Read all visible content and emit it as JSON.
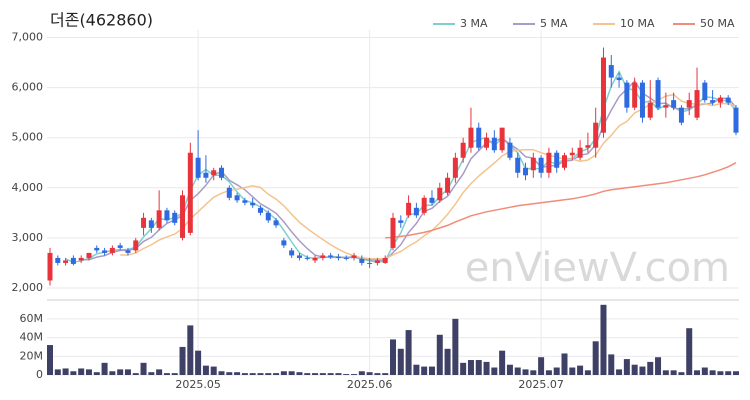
{
  "chart_data": {
    "type": "candlestick",
    "title": "더존(462860)",
    "watermark": "enViewV.com",
    "categories": [
      null,
      null,
      null,
      null,
      null,
      null,
      null,
      null,
      null,
      null,
      null,
      null,
      null,
      null,
      null,
      null,
      null,
      null,
      null,
      "2025.05",
      null,
      null,
      null,
      null,
      null,
      null,
      null,
      null,
      null,
      null,
      null,
      null,
      null,
      null,
      null,
      null,
      null,
      null,
      null,
      null,
      null,
      "2025.06",
      null,
      null,
      null,
      null,
      null,
      null,
      null,
      null,
      null,
      null,
      null,
      null,
      null,
      null,
      null,
      null,
      null,
      null,
      null,
      null,
      null,
      "2025.07",
      null,
      null,
      null,
      null,
      null,
      null,
      null,
      null,
      null,
      null,
      null,
      null,
      null,
      null,
      null,
      null,
      null,
      null,
      null,
      null,
      null,
      null,
      null,
      null,
      null
    ],
    "open": [
      2150,
      2600,
      2500,
      2600,
      2550,
      2600,
      2800,
      2750,
      2700,
      2850,
      2750,
      2750,
      3200,
      3350,
      3200,
      3550,
      3500,
      3000,
      3100,
      4600,
      4300,
      4250,
      4400,
      4000,
      3850,
      3750,
      3700,
      3600,
      3500,
      3350,
      2950,
      2750,
      2650,
      2600,
      2550,
      2600,
      2650,
      2620,
      2600,
      2600,
      2580,
      2500,
      2500,
      2500,
      2800,
      3350,
      3450,
      3600,
      3500,
      3800,
      3750,
      3900,
      4200,
      4600,
      4800,
      5200,
      4800,
      5000,
      4750,
      4900,
      4600,
      4400,
      4350,
      4600,
      4300,
      4700,
      4400,
      4650,
      4600,
      4800,
      4800,
      5100,
      6450,
      6200,
      6100,
      5600,
      6100,
      5400,
      6150,
      5600,
      5750,
      5600,
      5600,
      5400,
      6100,
      5750,
      5700,
      5800,
      5600
    ],
    "high": [
      2800,
      2650,
      2600,
      2650,
      2650,
      2700,
      2850,
      2800,
      2850,
      2900,
      2800,
      3000,
      3500,
      3400,
      3950,
      3600,
      3550,
      3950,
      4900,
      5150,
      4650,
      4400,
      4450,
      4050,
      3900,
      3800,
      3800,
      3650,
      3550,
      3400,
      3000,
      2800,
      2700,
      2650,
      2650,
      2700,
      2700,
      2680,
      2650,
      2700,
      2650,
      2600,
      2600,
      2650,
      3500,
      3450,
      3850,
      3700,
      3850,
      3950,
      4100,
      4300,
      4700,
      5000,
      5600,
      5300,
      5100,
      5150,
      5200,
      5000,
      4700,
      4500,
      4700,
      4650,
      4800,
      4750,
      4700,
      4800,
      4950,
      5100,
      5600,
      6800,
      6650,
      6300,
      6150,
      6200,
      6150,
      6150,
      6200,
      5900,
      5900,
      5650,
      5900,
      6400,
      6150,
      5950,
      5850,
      5850,
      5650
    ],
    "low": [
      2050,
      2450,
      2450,
      2450,
      2500,
      2550,
      2700,
      2650,
      2650,
      2750,
      2650,
      2700,
      3050,
      3100,
      3150,
      3300,
      3250,
      2950,
      3050,
      4150,
      4100,
      4150,
      4150,
      3750,
      3700,
      3650,
      3600,
      3450,
      3300,
      3200,
      2800,
      2600,
      2550,
      2550,
      2500,
      2550,
      2580,
      2550,
      2550,
      2550,
      2450,
      2400,
      2450,
      2480,
      2750,
      3200,
      3400,
      3400,
      3450,
      3650,
      3700,
      3850,
      4100,
      4500,
      4700,
      4750,
      4750,
      4700,
      4700,
      4550,
      4200,
      4150,
      4200,
      4200,
      4200,
      4300,
      4350,
      4550,
      4550,
      4700,
      4600,
      5000,
      6000,
      6000,
      5500,
      5550,
      5300,
      5350,
      5550,
      5400,
      5550,
      5250,
      5450,
      5350,
      5700,
      5650,
      5600,
      5650,
      5050
    ],
    "close": [
      2700,
      2500,
      2550,
      2480,
      2600,
      2700,
      2750,
      2700,
      2800,
      2800,
      2700,
      2950,
      3400,
      3200,
      3550,
      3350,
      3300,
      3850,
      4700,
      4200,
      4200,
      4350,
      4200,
      3800,
      3750,
      3700,
      3650,
      3500,
      3350,
      3250,
      2850,
      2650,
      2600,
      2580,
      2600,
      2650,
      2620,
      2600,
      2580,
      2650,
      2500,
      2480,
      2550,
      2600,
      3400,
      3300,
      3700,
      3450,
      3800,
      3700,
      4000,
      4200,
      4600,
      4900,
      5200,
      4800,
      5000,
      4750,
      5200,
      4600,
      4300,
      4250,
      4600,
      4300,
      4700,
      4400,
      4650,
      4700,
      4800,
      4850,
      5300,
      6600,
      6200,
      6150,
      5600,
      6100,
      5400,
      5700,
      5600,
      5650,
      5600,
      5300,
      5750,
      5950,
      5750,
      5700,
      5800,
      5700,
      5100
    ],
    "up_color": "#e8333b",
    "down_color": "#2e6be0",
    "ylim": [
      1800,
      7150
    ],
    "yticks": [
      {
        "value": 2000,
        "label": "2,000"
      },
      {
        "value": 3000,
        "label": "3,000"
      },
      {
        "value": 4000,
        "label": "4,000"
      },
      {
        "value": 5000,
        "label": "5,000"
      },
      {
        "value": 6000,
        "label": "6,000"
      },
      {
        "value": 7000,
        "label": "7,000"
      }
    ],
    "grid": true,
    "series": [
      {
        "name": "3 MA",
        "color": "#7ecfcf",
        "values": [
          null,
          null,
          2583,
          2510,
          2543,
          2593,
          2683,
          2717,
          2750,
          2767,
          2767,
          2817,
          3017,
          3183,
          3383,
          3367,
          3400,
          3500,
          3950,
          4250,
          4367,
          4250,
          4250,
          4117,
          3917,
          3750,
          3700,
          3617,
          3500,
          3367,
          3150,
          2917,
          2700,
          2610,
          2593,
          2610,
          2623,
          2623,
          2600,
          2610,
          2577,
          2543,
          2510,
          2543,
          2850,
          3100,
          3467,
          3483,
          3650,
          3650,
          3833,
          3967,
          4267,
          4567,
          4900,
          4967,
          5000,
          4850,
          4983,
          4850,
          4700,
          4383,
          4383,
          4383,
          4533,
          4467,
          4583,
          4583,
          4717,
          4783,
          4983,
          5583,
          6033,
          6317,
          5983,
          5950,
          5700,
          5733,
          5567,
          5650,
          5617,
          5517,
          5550,
          5667,
          5817,
          5800,
          5750,
          5733,
          5533
        ]
      },
      {
        "name": "5 MA",
        "color": "#a89cc8",
        "values": [
          null,
          null,
          null,
          null,
          2566,
          2566,
          2616,
          2646,
          2710,
          2750,
          2750,
          2790,
          2930,
          3010,
          3160,
          3290,
          3360,
          3450,
          3750,
          3880,
          4050,
          4260,
          4330,
          4150,
          4060,
          3960,
          3820,
          3680,
          3590,
          3490,
          3320,
          3120,
          2940,
          2786,
          2656,
          2616,
          2610,
          2610,
          2610,
          2620,
          2590,
          2562,
          2552,
          2556,
          2706,
          2866,
          3110,
          3290,
          3530,
          3590,
          3730,
          3830,
          4060,
          4280,
          4580,
          4740,
          4900,
          4930,
          4990,
          4870,
          4770,
          4620,
          4590,
          4410,
          4430,
          4450,
          4530,
          4550,
          4650,
          4680,
          4860,
          5250,
          5550,
          5820,
          5970,
          6130,
          5890,
          5790,
          5680,
          5690,
          5590,
          5570,
          5580,
          5650,
          5670,
          5690,
          5790,
          5780,
          5610
        ]
      },
      {
        "name": "10 MA",
        "color": "#f3c48e",
        "values": [
          null,
          null,
          null,
          null,
          null,
          null,
          null,
          null,
          null,
          2658,
          2658,
          2703,
          2788,
          2860,
          2955,
          3020,
          3075,
          3190,
          3380,
          3520,
          3670,
          3810,
          3890,
          3950,
          3970,
          4005,
          4040,
          4005,
          3870,
          3775,
          3640,
          3470,
          3310,
          3188,
          3073,
          2968,
          2865,
          2775,
          2698,
          2638,
          2603,
          2586,
          2581,
          2583,
          2663,
          2728,
          2836,
          2921,
          3043,
          3148,
          3298,
          3470,
          3675,
          3905,
          4085,
          4235,
          4365,
          4495,
          4635,
          4725,
          4755,
          4760,
          4760,
          4700,
          4650,
          4610,
          4575,
          4570,
          4530,
          4555,
          4655,
          4890,
          5050,
          5235,
          5325,
          5495,
          5570,
          5670,
          5750,
          5830,
          5860,
          5730,
          5685,
          5665,
          5680,
          5640,
          5680,
          5680,
          5630
        ]
      },
      {
        "name": "50 MA",
        "color": "#f08c78",
        "values": [
          null,
          null,
          null,
          null,
          null,
          null,
          null,
          null,
          null,
          null,
          null,
          null,
          null,
          null,
          null,
          null,
          null,
          null,
          null,
          null,
          null,
          null,
          null,
          null,
          null,
          null,
          null,
          null,
          null,
          null,
          null,
          null,
          null,
          null,
          null,
          null,
          null,
          null,
          null,
          null,
          null,
          null,
          null,
          3000,
          3010,
          3030,
          3050,
          3080,
          3110,
          3150,
          3200,
          3250,
          3320,
          3380,
          3440,
          3480,
          3520,
          3550,
          3580,
          3610,
          3640,
          3660,
          3680,
          3700,
          3720,
          3740,
          3760,
          3780,
          3810,
          3840,
          3880,
          3930,
          3960,
          3980,
          4000,
          4020,
          4040,
          4060,
          4080,
          4100,
          4130,
          4160,
          4190,
          4220,
          4260,
          4310,
          4360,
          4420,
          4500
        ]
      }
    ],
    "volume": {
      "color": "#3e4066",
      "ylim": [
        0,
        78000000
      ],
      "yticks": [
        0,
        {
          "value": 20000000,
          "label": "20M"
        },
        {
          "value": 40000000,
          "label": "40M"
        },
        {
          "value": 60000000,
          "label": "60M"
        }
      ],
      "values": [
        32000000,
        6000000,
        7000000,
        4000000,
        7000000,
        6000000,
        3000000,
        13000000,
        4000000,
        6000000,
        6000000,
        2000000,
        13000000,
        3000000,
        6000000,
        2000000,
        2000000,
        30000000,
        53000000,
        26000000,
        10000000,
        9000000,
        4000000,
        3000000,
        3000000,
        2000000,
        2000000,
        2000000,
        2000000,
        2000000,
        4000000,
        4000000,
        3000000,
        2000000,
        2000000,
        2000000,
        2000000,
        2000000,
        1000000,
        1000000,
        4000000,
        3000000,
        2000000,
        2000000,
        38000000,
        28000000,
        48000000,
        11000000,
        9000000,
        9000000,
        43000000,
        28000000,
        60000000,
        13000000,
        16000000,
        16000000,
        14000000,
        8000000,
        26000000,
        11000000,
        8000000,
        6000000,
        5000000,
        19000000,
        5000000,
        8000000,
        23000000,
        8000000,
        10000000,
        5000000,
        36000000,
        75000000,
        22000000,
        6000000,
        17000000,
        11000000,
        9000000,
        14000000,
        19000000,
        5000000,
        5000000,
        3000000,
        50000000,
        5000000,
        8000000,
        5000000,
        4000000,
        4000000,
        4000000
      ]
    }
  }
}
